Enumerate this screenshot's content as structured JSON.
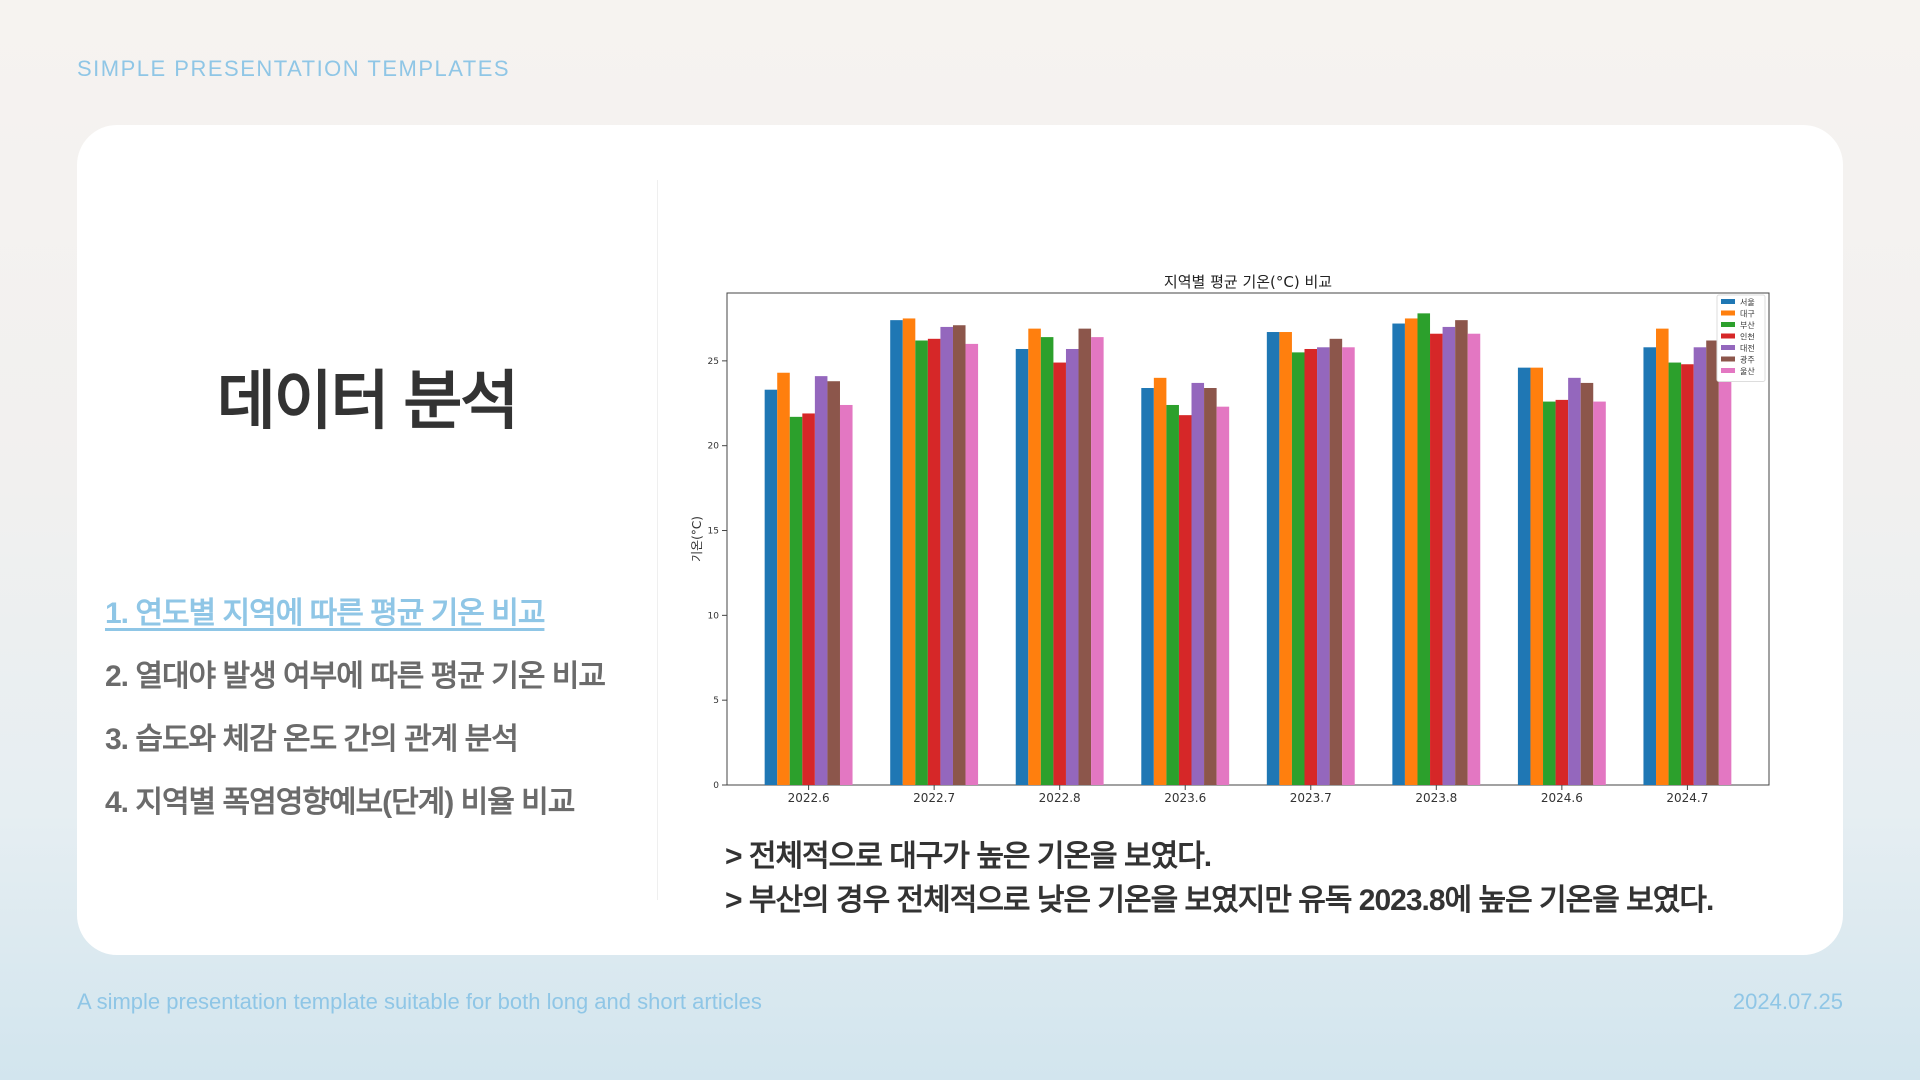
{
  "header": {
    "top_label": "SIMPLE PRESENTATION TEMPLATES"
  },
  "slide": {
    "title": "데이터 분석",
    "menu": [
      {
        "label": "1. 연도별 지역에 따른 평균 기온 비교",
        "active": true
      },
      {
        "label": "2. 열대야 발생 여부에 따른 평균 기온 비교",
        "active": false
      },
      {
        "label": "3. 습도와 체감 온도 간의 관계 분석",
        "active": false
      },
      {
        "label": "4. 지역별 폭염영향예보(단계) 비율 비교",
        "active": false
      }
    ],
    "conclusions": [
      "> 전체적으로 대구가 높은 기온을 보였다.",
      "> 부산의 경우 전체적으로 낮은 기온을 보였지만 유독 2023.8에 높은 기온을 보였다."
    ]
  },
  "footer": {
    "description": "A simple presentation template suitable for both long and short articles",
    "date": "2024.07.25"
  },
  "colors": {
    "accent": "#8fc6e6",
    "title": "#333333",
    "menu": "#6b6b6b"
  },
  "chart_data": {
    "type": "bar",
    "title": "지역별 평균 기온(°C) 비교",
    "xlabel": "",
    "ylabel": "기온(°C)",
    "ylim": [
      0,
      29
    ],
    "yticks": [
      0,
      5,
      10,
      15,
      20,
      25
    ],
    "grid": false,
    "legend_position": "top-right",
    "categories": [
      "2022.6",
      "2022.7",
      "2022.8",
      "2023.6",
      "2023.7",
      "2023.8",
      "2024.6",
      "2024.7"
    ],
    "series": [
      {
        "name": "서울",
        "color": "#1f77b4",
        "values": [
          23.3,
          27.4,
          25.7,
          23.4,
          26.7,
          27.2,
          24.6,
          25.8
        ]
      },
      {
        "name": "대구",
        "color": "#ff7f0e",
        "values": [
          24.3,
          27.5,
          26.9,
          24.0,
          26.7,
          27.5,
          24.6,
          26.9
        ]
      },
      {
        "name": "부산",
        "color": "#2ca02c",
        "values": [
          21.7,
          26.2,
          26.4,
          22.4,
          25.5,
          27.8,
          22.6,
          24.9
        ]
      },
      {
        "name": "인천",
        "color": "#d62728",
        "values": [
          21.9,
          26.3,
          24.9,
          21.8,
          25.7,
          26.6,
          22.7,
          24.8
        ]
      },
      {
        "name": "대전",
        "color": "#9467bd",
        "values": [
          24.1,
          27.0,
          25.7,
          23.7,
          25.8,
          27.0,
          24.0,
          25.8
        ]
      },
      {
        "name": "광주",
        "color": "#8c564b",
        "values": [
          23.8,
          27.1,
          26.9,
          23.4,
          26.3,
          27.4,
          23.7,
          26.2
        ]
      },
      {
        "name": "울산",
        "color": "#e377c2",
        "values": [
          22.4,
          26.0,
          26.4,
          22.3,
          25.8,
          26.6,
          22.6,
          25.8
        ]
      }
    ]
  }
}
